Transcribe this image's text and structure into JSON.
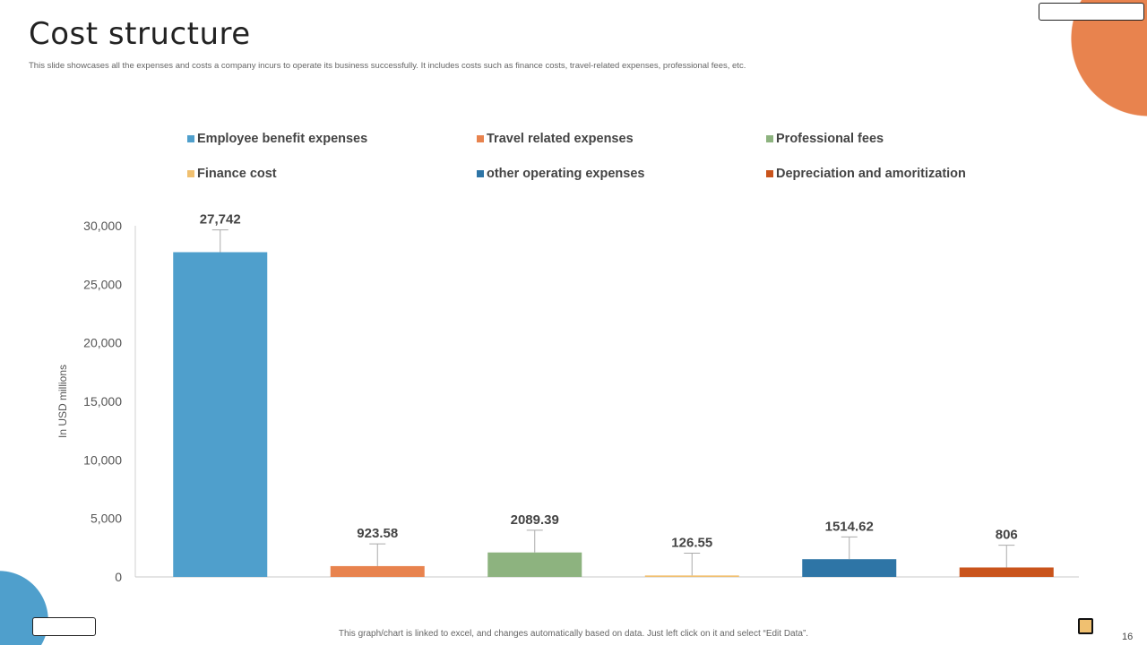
{
  "header": {
    "title": "Cost structure",
    "subtitle": "This slide showcases all the expenses and costs a company incurs to operate its business successfully. It includes costs such as finance costs, travel-related expenses, professional fees, etc."
  },
  "footer": {
    "note": "This graph/chart is linked to excel, and changes automatically based on data. Just left click on it and select “Edit Data”.",
    "page_number": "16"
  },
  "chart_data": {
    "type": "bar",
    "categories": [
      "Employee benefit expenses",
      "Travel related expenses",
      "Professional fees",
      "Finance cost",
      "other operating expenses",
      "Depreciation and amoritization"
    ],
    "values": [
      27742,
      923.58,
      2089.39,
      126.55,
      1514.62,
      806
    ],
    "data_labels": [
      "27,742",
      "923.58",
      "2089.39",
      "126.55",
      "1514.62",
      "806"
    ],
    "colors": [
      "#4F9FCC",
      "#E8834E",
      "#8DB37F",
      "#F0C070",
      "#2E75A6",
      "#C9541C"
    ],
    "ylabel": "In USD millions",
    "ylim": [
      0,
      30000
    ],
    "yticks": [
      0,
      5000,
      10000,
      15000,
      20000,
      25000,
      30000
    ],
    "ytick_labels": [
      "0",
      "5,000",
      "10,000",
      "15,000",
      "20,000",
      "25,000",
      "30,000"
    ],
    "error_bars": "positive, approx 1,900",
    "grid": false,
    "legend_position": "top"
  }
}
